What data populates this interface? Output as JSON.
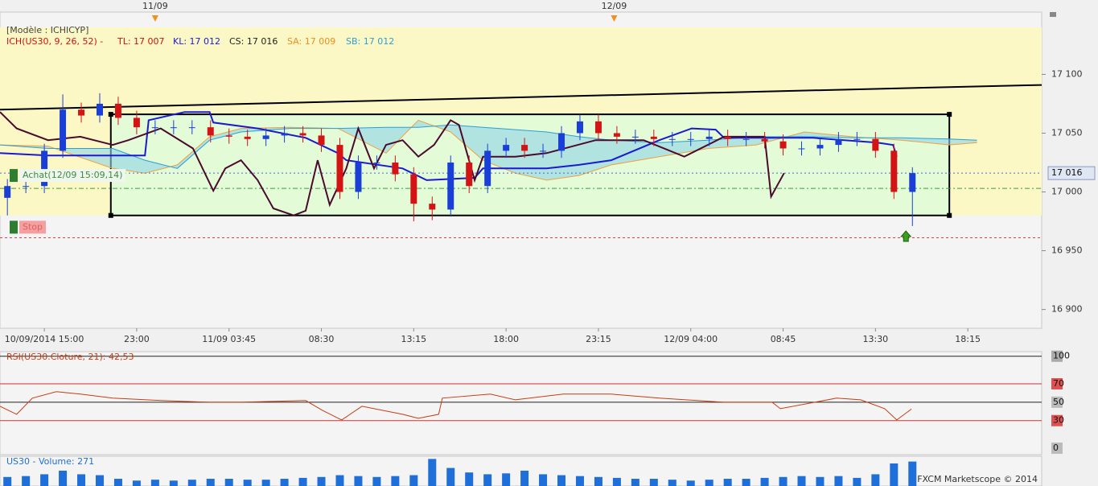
{
  "footer": "FXCM Marketscope © 2014",
  "chart_data": [
    {
      "type": "candlestick",
      "model": "[Modèle : ICHICYP]",
      "legend": [
        {
          "text": "ICH(US30, 9, 26, 52) -",
          "color": "#d01010"
        },
        {
          "text": "TL: 17 007",
          "color": "#d01010"
        },
        {
          "text": "KL: 17 012",
          "color": "#1a1ad0"
        },
        {
          "text": "CS: 17 016",
          "color": "#222222"
        },
        {
          "text": "SA: 17 009",
          "color": "#f08c1c"
        },
        {
          "text": "SB: 17 012",
          "color": "#2a9fd6"
        }
      ],
      "x": [
        -0.4,
        -0.2,
        0,
        0.2,
        0.4,
        0.6,
        0.8,
        1,
        1.2,
        1.4,
        1.6,
        1.8,
        2,
        2.2,
        2.4,
        2.6,
        2.8,
        3,
        3.2,
        3.4,
        3.6,
        3.8,
        4,
        4.2,
        4.4,
        4.6,
        4.8,
        5,
        5.2,
        5.4,
        5.6,
        5.8,
        6,
        6.2,
        6.4,
        6.6,
        6.8,
        7,
        7.2,
        7.4,
        7.6,
        7.8,
        8,
        8.2,
        8.4,
        8.6,
        8.8,
        9,
        9.2,
        9.4
      ],
      "open": [
        16995,
        17005,
        17005,
        17035,
        17070,
        17065,
        17075,
        17063,
        17055,
        17055,
        17055,
        17055,
        17048,
        17047,
        17045,
        17048,
        17050,
        17048,
        17040,
        17000,
        17025,
        17025,
        17015,
        16990,
        16985,
        17025,
        17005,
        17035,
        17040,
        17035,
        17035,
        17050,
        17060,
        17050,
        17047,
        17047,
        17045,
        17045,
        17045,
        17047,
        17045,
        17045,
        17043,
        17037,
        17037,
        17040,
        17045,
        17045,
        17035,
        17000
      ],
      "high": [
        17011,
        17011,
        17041,
        17083,
        17076,
        17084,
        17081,
        17069,
        17061,
        17061,
        17061,
        17061,
        17054,
        17053,
        17054,
        17056,
        17056,
        17054,
        17046,
        17031,
        17031,
        17031,
        17021,
        16996,
        17031,
        17031,
        17041,
        17046,
        17046,
        17041,
        17056,
        17066,
        17066,
        17056,
        17053,
        17053,
        17051,
        17051,
        17053,
        17053,
        17051,
        17051,
        17049,
        17043,
        17046,
        17051,
        17051,
        17051,
        17041,
        17021
      ],
      "low": [
        16980,
        16999,
        16999,
        17029,
        17059,
        17059,
        17057,
        17049,
        17049,
        17049,
        17049,
        17042,
        17041,
        17039,
        17039,
        17042,
        17042,
        17034,
        16994,
        16994,
        17019,
        17009,
        16975,
        16976,
        16979,
        16999,
        16999,
        17029,
        17029,
        17029,
        17029,
        17044,
        17044,
        17041,
        17041,
        17039,
        17039,
        17039,
        17039,
        17039,
        17039,
        17037,
        17031,
        17031,
        17031,
        17034,
        17039,
        17029,
        16994,
        16971
      ],
      "close": [
        17005,
        17005,
        17035,
        17070,
        17065,
        17075,
        17063,
        17055,
        17055,
        17055,
        17055,
        17048,
        17047,
        17045,
        17048,
        17050,
        17048,
        17040,
        17000,
        17025,
        17025,
        17015,
        16990,
        16985,
        17025,
        17005,
        17035,
        17040,
        17035,
        17035,
        17050,
        17060,
        17050,
        17047,
        17047,
        17045,
        17045,
        17045,
        17047,
        17045,
        17045,
        17043,
        17037,
        17037,
        17040,
        17045,
        17045,
        17035,
        17000,
        17016
      ],
      "up_color": "#1a3fd6",
      "down_color": "#d41414",
      "cloud": {
        "x": [
          -0.48,
          0.04,
          0.74,
          1.09,
          1.44,
          1.79,
          2.13,
          2.66,
          3.18,
          3.7,
          4.05,
          4.4,
          4.75,
          5.1,
          5.44,
          5.79,
          6.14,
          6.66,
          7.19,
          7.71,
          8.23,
          8.75,
          9.28,
          9.8,
          10.1
        ],
        "sa": [
          17040,
          17039,
          17020,
          17016,
          17023,
          17047,
          17054,
          17055,
          17054,
          17033,
          17061,
          17051,
          17027,
          17016,
          17010,
          17014,
          17023,
          17030,
          17037,
          17040,
          17051,
          17047,
          17044,
          17040,
          17042
        ],
        "sb": [
          17040,
          17037,
          17037,
          17027,
          17020,
          17044,
          17051,
          17054,
          17054,
          17055,
          17055,
          17057,
          17055,
          17053,
          17051,
          17047,
          17044,
          17042,
          17044,
          17047,
          17047,
          17046,
          17046,
          17045,
          17044
        ],
        "sa_color": "#f0a040",
        "sb_color": "#2a9fd6",
        "fill": "#8fd3e6"
      },
      "lines": [
        {
          "color": "#1a1ad0",
          "x": [
            -0.48,
            0.04,
            0.74,
            1.09,
            1.13,
            1.52,
            1.79,
            1.83,
            2.31,
            2.83,
            3.18,
            3.27,
            3.88,
            4.14,
            4.66,
            4.75,
            5.44,
            5.79,
            6.14,
            6.66,
            7.01,
            7.27,
            7.36,
            8.32,
            9.02,
            9.19,
            9.23
          ],
          "values": [
            17033,
            17031,
            17031,
            17031,
            17061,
            17068,
            17068,
            17059,
            17054,
            17046,
            17033,
            17027,
            17020,
            17010,
            17012,
            17020,
            17020,
            17023,
            17027,
            17044,
            17054,
            17053,
            17046,
            17046,
            17042,
            17040,
            17030
          ]
        },
        {
          "color": "#4a0a2e",
          "x": [
            -0.48,
            -0.3,
            0.04,
            0.39,
            0.74,
            0.91,
            1.26,
            1.61,
            1.83,
            1.96,
            2.13,
            2.31,
            2.48,
            2.7,
            2.83,
            2.96,
            3.09,
            3.27,
            3.4,
            3.57,
            3.7,
            3.88,
            4.05,
            4.22,
            4.4,
            4.49,
            4.66,
            4.75,
            5.1,
            5.44,
            5.97,
            6.49,
            6.93,
            7.36,
            7.8,
            7.87,
            8.01
          ],
          "values": [
            17068,
            17054,
            17044,
            17047,
            17040,
            17044,
            17054,
            17037,
            17001,
            17020,
            17027,
            17010,
            16986,
            16980,
            16984,
            17027,
            16989,
            17020,
            17054,
            17020,
            17040,
            17044,
            17030,
            17040,
            17061,
            17057,
            17010,
            17030,
            17030,
            17033,
            17044,
            17044,
            17030,
            17047,
            17047,
            16996,
            17016
          ]
        }
      ],
      "rectangle": {
        "x": [
          0.72,
          9.8
        ],
        "y": [
          16980,
          17066
        ],
        "fill": "#e4fbd8"
      },
      "band": {
        "y": [
          16980,
          17140
        ],
        "fill": "#fbf8c6"
      },
      "trendline": {
        "x": [
          -0.48,
          10.8
        ],
        "values": [
          17070,
          17091
        ]
      },
      "hlines": [
        {
          "value": 17016,
          "color": "#4a6ad0",
          "dash": "2,3"
        },
        {
          "value": 17003,
          "color": "#3c9c3c",
          "dash": "6,3,2,3"
        },
        {
          "value": 16961,
          "color": "#e04040",
          "dash": "3,3"
        }
      ],
      "orders": [
        {
          "label": "Achat(12/09 15:09,14)",
          "value": 17014,
          "color": "#3c8c3c"
        },
        {
          "label": "Stop",
          "value": 16970,
          "color": "#e06060"
        }
      ],
      "arrow": {
        "x": 9.33,
        "value": 16962,
        "color": "#3aa020"
      },
      "price_tag": {
        "value": 17016,
        "label": "17 016"
      },
      "date_markers": [
        {
          "x": 1.2,
          "label": "11/09"
        },
        {
          "x": 6.17,
          "label": "12/09"
        }
      ],
      "xlim": [
        -0.48,
        10.8
      ],
      "ylim": [
        16884,
        17153
      ],
      "xticks": [
        {
          "value": 0,
          "label": "10/09/2014 15:00"
        },
        {
          "value": 1,
          "label": "23:00"
        },
        {
          "value": 2,
          "label": "11/09 03:45"
        },
        {
          "value": 3,
          "label": "08:30"
        },
        {
          "value": 4,
          "label": "13:15"
        },
        {
          "value": 5,
          "label": "18:00"
        },
        {
          "value": 6,
          "label": "23:15"
        },
        {
          "value": 7,
          "label": "12/09 04:00"
        },
        {
          "value": 8,
          "label": "08:45"
        },
        {
          "value": 9,
          "label": "13:30"
        },
        {
          "value": 10,
          "label": "18:15"
        }
      ],
      "yticks": [
        {
          "value": 16900,
          "label": "16 900"
        },
        {
          "value": 16950,
          "label": "16 950"
        },
        {
          "value": 17000,
          "label": "17 000"
        },
        {
          "value": 17050,
          "label": "17 050"
        },
        {
          "value": 17100,
          "label": "17 100"
        }
      ]
    },
    {
      "type": "line",
      "title": "RSI(US30.Cloture, 21): 42,53",
      "color": "#c83c14",
      "x": [
        -0.48,
        -0.3,
        -0.13,
        0.13,
        0.39,
        0.74,
        1.26,
        1.79,
        2.13,
        2.83,
        3.01,
        3.22,
        3.44,
        3.88,
        4.05,
        4.27,
        4.31,
        4.83,
        5.1,
        5.62,
        6.14,
        6.66,
        7.36,
        7.88,
        7.97,
        8.58,
        8.84,
        9.1,
        9.23,
        9.39
      ],
      "values": [
        45.6,
        36.8,
        54.4,
        61.4,
        58.8,
        54.4,
        51.8,
        50,
        50,
        51.8,
        41.2,
        30.7,
        45.6,
        36.8,
        32.5,
        36.8,
        54.4,
        58.8,
        52.6,
        58.8,
        58.8,
        54.4,
        50,
        50,
        43,
        54.4,
        52.6,
        43,
        30.7,
        42.53
      ],
      "xlim": [
        -0.48,
        10.8
      ],
      "ylim": [
        -7,
        105
      ],
      "yticks": [
        0,
        30,
        50,
        70,
        100
      ],
      "tick_colors": [
        "#bbbbbb",
        "#e05050",
        "#bbbbbb",
        "#e05050",
        "#aaaaaa"
      ],
      "line_colors": [
        null,
        "#d03030",
        "#222222",
        "#d03030",
        "#222222"
      ]
    },
    {
      "type": "bar",
      "title": "US30 - Volume: 271",
      "color": "#1e6fd9",
      "x": [
        -0.4,
        -0.2,
        0,
        0.2,
        0.4,
        0.6,
        0.8,
        1,
        1.2,
        1.4,
        1.6,
        1.8,
        2,
        2.2,
        2.4,
        2.6,
        2.8,
        3,
        3.2,
        3.4,
        3.6,
        3.8,
        4,
        4.2,
        4.4,
        4.6,
        4.8,
        5,
        5.2,
        5.4,
        5.6,
        5.8,
        6,
        6.2,
        6.4,
        6.6,
        6.8,
        7,
        7.2,
        7.4,
        7.6,
        7.8,
        8,
        8.2,
        8.4,
        8.6,
        8.8,
        9,
        9.2,
        9.4
      ],
      "values": [
        100,
        110,
        130,
        170,
        130,
        120,
        80,
        60,
        70,
        60,
        70,
        80,
        80,
        70,
        70,
        80,
        90,
        100,
        120,
        110,
        100,
        110,
        120,
        300,
        200,
        150,
        130,
        140,
        170,
        130,
        120,
        110,
        100,
        90,
        80,
        80,
        70,
        60,
        70,
        80,
        80,
        90,
        100,
        110,
        100,
        110,
        90,
        130,
        250,
        271
      ],
      "xlim": [
        -0.48,
        10.8
      ],
      "ylim": [
        0,
        330
      ]
    }
  ]
}
